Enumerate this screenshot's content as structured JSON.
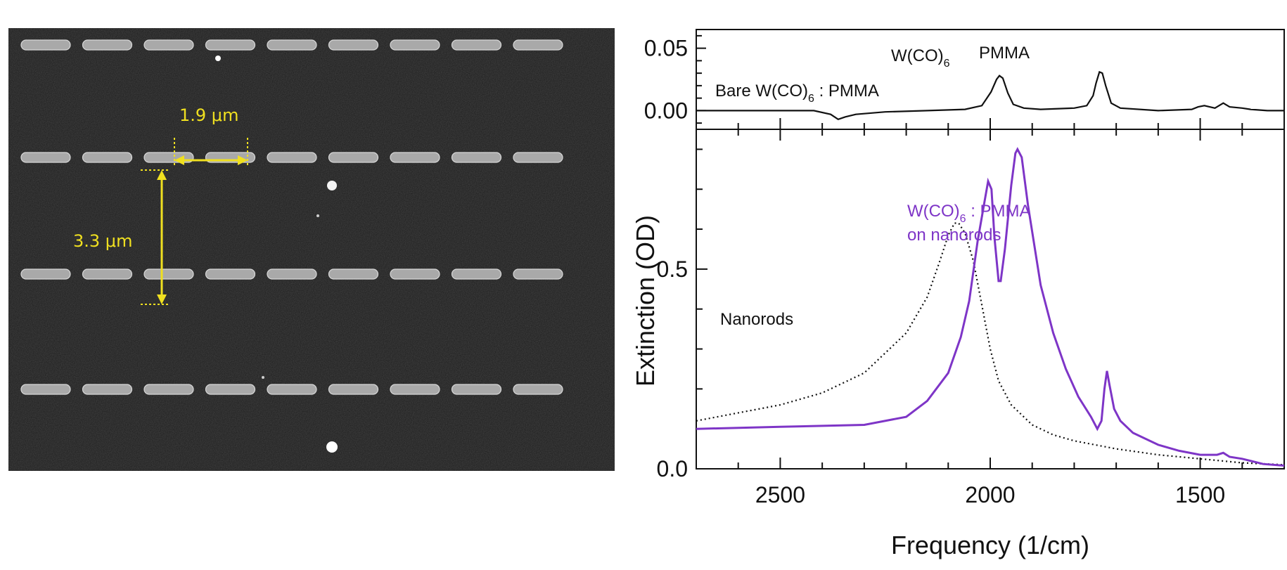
{
  "sem_image": {
    "scale_bar_horizontal_label": "1.9 μm",
    "scale_bar_vertical_label": "3.3 μm",
    "rows_of_nanorods": 4,
    "rods_per_row": 9,
    "scale_bar_color": "#f0e020"
  },
  "chart_data": [
    {
      "type": "line",
      "panel": "top",
      "xlabel": "",
      "ylabel": "",
      "xlim": [
        2700,
        1300
      ],
      "ylim": [
        -0.015,
        0.065
      ],
      "yticks": [
        0.0,
        0.05
      ],
      "ytick_labels": [
        "0.00",
        "0.05"
      ],
      "annotations": {
        "sample": "Bare W(CO)",
        "sample_sub": "6",
        "sample_suffix": " : PMMA",
        "peak1": "W(CO)",
        "peak1_sub": "6",
        "peak2": "PMMA"
      },
      "series": [
        {
          "color": "#111111",
          "style": "solid",
          "x": [
            2700,
            2500,
            2420,
            2380,
            2362,
            2345,
            2320,
            2250,
            2150,
            2060,
            2020,
            1998,
            1985,
            1978,
            1970,
            1958,
            1945,
            1920,
            1880,
            1800,
            1770,
            1755,
            1748,
            1740,
            1733,
            1725,
            1712,
            1690,
            1600,
            1520,
            1505,
            1490,
            1465,
            1445,
            1430,
            1400,
            1380,
            1340,
            1300
          ],
          "y": [
            0.0,
            0.0,
            0.0,
            -0.003,
            -0.007,
            -0.005,
            -0.003,
            -0.001,
            0.0,
            0.001,
            0.004,
            0.015,
            0.025,
            0.028,
            0.026,
            0.014,
            0.005,
            0.002,
            0.001,
            0.002,
            0.004,
            0.012,
            0.022,
            0.031,
            0.03,
            0.02,
            0.006,
            0.002,
            0.0,
            0.001,
            0.003,
            0.004,
            0.002,
            0.006,
            0.003,
            0.002,
            0.001,
            0.0,
            0.0
          ]
        }
      ]
    },
    {
      "type": "line",
      "panel": "bottom",
      "xlabel": "Frequency (1/cm)",
      "ylabel": "Extinction (OD)",
      "xlim": [
        2700,
        1300
      ],
      "ylim": [
        0.0,
        0.85
      ],
      "xticks": [
        2500,
        2000,
        1500
      ],
      "xtick_labels": [
        "2500",
        "2000",
        "1500"
      ],
      "yticks": [
        0.0,
        0.5
      ],
      "ytick_labels": [
        "0.0",
        "0.5"
      ],
      "annotations": {
        "nanorods_label": "Nanorods",
        "coated_label_line1": "W(CO)",
        "coated_label_line1_sub": "6",
        "coated_label_line1_suffix": " : PMMA",
        "coated_label_line2": "on nanorods"
      },
      "series": [
        {
          "color": "#111111",
          "style": "dotted",
          "x": [
            2700,
            2500,
            2400,
            2300,
            2200,
            2150,
            2120,
            2100,
            2085,
            2075,
            2060,
            2040,
            2020,
            2000,
            1980,
            1950,
            1900,
            1850,
            1800,
            1700,
            1600,
            1500,
            1400,
            1300
          ],
          "y": [
            0.12,
            0.16,
            0.19,
            0.24,
            0.34,
            0.43,
            0.52,
            0.585,
            0.615,
            0.615,
            0.59,
            0.52,
            0.41,
            0.3,
            0.22,
            0.16,
            0.11,
            0.085,
            0.07,
            0.05,
            0.035,
            0.025,
            0.015,
            0.01
          ]
        },
        {
          "color": "#7e35c7",
          "style": "solid",
          "x": [
            2700,
            2500,
            2300,
            2200,
            2150,
            2100,
            2070,
            2050,
            2030,
            2015,
            2005,
            1997,
            1990,
            1980,
            1975,
            1965,
            1950,
            1940,
            1935,
            1925,
            1910,
            1880,
            1850,
            1820,
            1790,
            1760,
            1745,
            1735,
            1728,
            1722,
            1716,
            1705,
            1690,
            1660,
            1600,
            1550,
            1500,
            1460,
            1445,
            1430,
            1400,
            1350,
            1300
          ],
          "y": [
            0.1,
            0.105,
            0.11,
            0.13,
            0.17,
            0.24,
            0.33,
            0.42,
            0.57,
            0.66,
            0.72,
            0.7,
            0.58,
            0.47,
            0.47,
            0.55,
            0.71,
            0.79,
            0.8,
            0.78,
            0.66,
            0.46,
            0.34,
            0.25,
            0.18,
            0.13,
            0.1,
            0.12,
            0.2,
            0.245,
            0.21,
            0.15,
            0.12,
            0.09,
            0.06,
            0.045,
            0.035,
            0.035,
            0.04,
            0.03,
            0.025,
            0.012,
            0.008
          ]
        }
      ]
    }
  ]
}
